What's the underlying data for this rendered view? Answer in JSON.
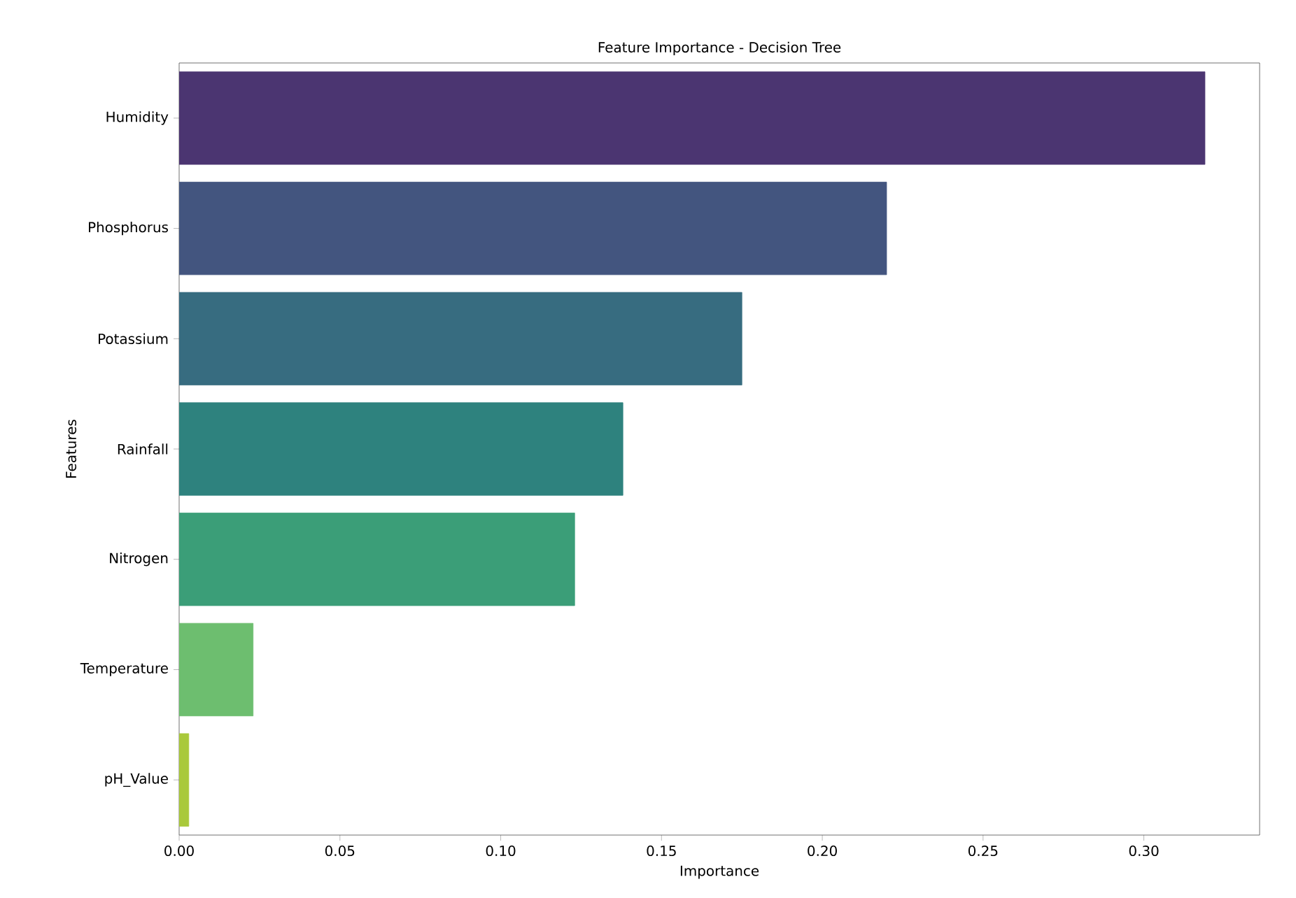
{
  "chart_data": {
    "type": "bar",
    "orientation": "horizontal",
    "title": "Feature Importance - Decision Tree",
    "xlabel": "Importance",
    "ylabel": "Features",
    "categories": [
      "Humidity",
      "Phosphorus",
      "Potassium",
      "Rainfall",
      "Nitrogen",
      "Temperature",
      "pH_Value"
    ],
    "values": [
      0.319,
      0.22,
      0.175,
      0.138,
      0.123,
      0.023,
      0.003
    ],
    "colors": [
      "#4b3571",
      "#43557f",
      "#376c80",
      "#2e827e",
      "#3b9e78",
      "#6dbe6f",
      "#a9c93b"
    ],
    "xlim": [
      0,
      0.336
    ],
    "xticks": [
      {
        "value": 0,
        "label": "0.00"
      },
      {
        "value": 0.05,
        "label": "0.05"
      },
      {
        "value": 0.1,
        "label": "0.10"
      },
      {
        "value": 0.15,
        "label": "0.15"
      },
      {
        "value": 0.2,
        "label": "0.20"
      },
      {
        "value": 0.25,
        "label": "0.25"
      },
      {
        "value": 0.3,
        "label": "0.30"
      }
    ]
  }
}
